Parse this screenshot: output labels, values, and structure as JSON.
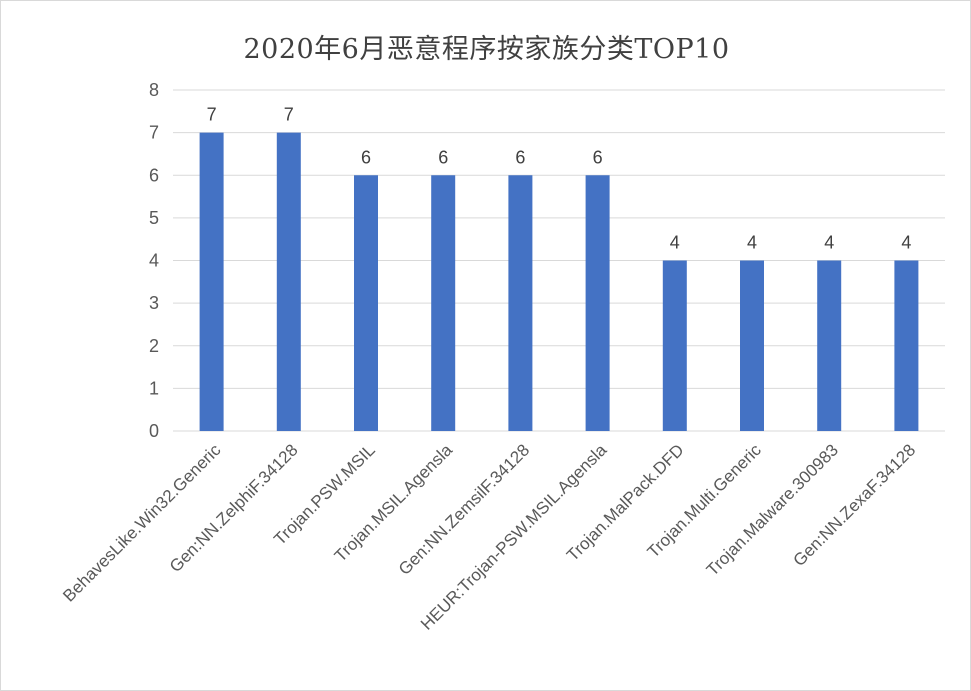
{
  "chart_data": {
    "type": "bar",
    "title": "2020年6月恶意程序按家族分类TOP10",
    "xlabel": "",
    "ylabel": "",
    "ylim": [
      0,
      8
    ],
    "yticks": [
      0,
      1,
      2,
      3,
      4,
      5,
      6,
      7,
      8
    ],
    "grid": true,
    "legend": "none",
    "bar_color": "#4472c4",
    "categories": [
      "BehavesLike.Win32.Generic",
      "Gen:NN.ZelphiF.34128",
      "Trojan.PSW.MSIL",
      "Trojan.MSIL.Agensla",
      "Gen:NN.ZemsilF.34128",
      "HEUR:Trojan-PSW.MSIL.Agensla",
      "Trojan.MalPack.DFD",
      "Trojan.Multi.Generic",
      "Trojan.Malware.300983",
      "Gen:NN.ZexaF.34128"
    ],
    "values": [
      7,
      7,
      6,
      6,
      6,
      6,
      4,
      4,
      4,
      4
    ],
    "data_labels": [
      "7",
      "7",
      "6",
      "6",
      "6",
      "6",
      "4",
      "4",
      "4",
      "4"
    ]
  }
}
